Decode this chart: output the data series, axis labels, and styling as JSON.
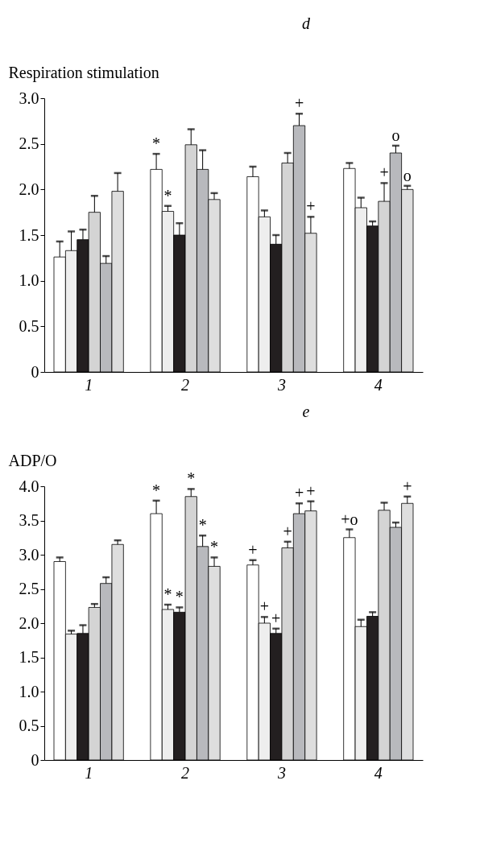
{
  "chart_data": [
    {
      "type": "bar",
      "title": "d",
      "ylabel": "Respiration stimulation",
      "categories": [
        "1",
        "2",
        "3",
        "4"
      ],
      "ylim": [
        0,
        3.0
      ],
      "yticks": [
        0,
        0.5,
        {
          "value": 1,
          "label": "1.0"
        },
        1.5,
        {
          "value": 2,
          "label": "2.0"
        },
        2.5,
        {
          "value": 3,
          "label": "3.0"
        }
      ],
      "grid": false,
      "legend": false,
      "series": [
        {
          "color": "#ffffff",
          "values": [
            1.26,
            2.22,
            2.14,
            2.23
          ],
          "errors": [
            [
              1.26,
              1.43
            ],
            [
              2.22,
              2.39
            ],
            [
              2.14,
              2.25
            ],
            [
              2.23,
              2.29
            ]
          ],
          "value_labels": [
            null,
            "*",
            null,
            null
          ]
        },
        {
          "color": "#eeeeee",
          "values": [
            1.33,
            1.76,
            1.7,
            1.8
          ],
          "errors": [
            [
              1.33,
              1.54
            ],
            [
              1.76,
              1.82
            ],
            [
              1.7,
              1.77
            ],
            [
              1.8,
              1.91
            ]
          ],
          "value_labels": [
            null,
            "*",
            null,
            null
          ]
        },
        {
          "color": "#231f20",
          "values": [
            1.45,
            1.5,
            1.4,
            1.6
          ],
          "errors": [
            [
              1.45,
              1.56
            ],
            [
              1.5,
              1.63
            ],
            [
              1.4,
              1.5
            ],
            [
              1.6,
              1.65
            ]
          ],
          "value_labels": [
            null,
            null,
            null,
            null
          ]
        },
        {
          "color": "#d4d4d4",
          "values": [
            1.75,
            2.49,
            2.29,
            1.87
          ],
          "errors": [
            [
              1.75,
              1.93
            ],
            [
              2.49,
              2.66
            ],
            [
              2.29,
              2.4
            ],
            [
              1.87,
              2.07
            ]
          ],
          "value_labels": [
            null,
            null,
            null,
            "+"
          ]
        },
        {
          "color": "#b8b9bd",
          "values": [
            1.19,
            2.22,
            2.7,
            2.4
          ],
          "errors": [
            [
              1.19,
              1.27
            ],
            [
              2.22,
              2.43
            ],
            [
              2.7,
              2.83
            ],
            [
              2.4,
              2.48
            ]
          ],
          "value_labels": [
            null,
            null,
            "+",
            "o"
          ]
        },
        {
          "color": "#dedede",
          "values": [
            1.98,
            1.89,
            1.52,
            2.0
          ],
          "errors": [
            [
              1.98,
              2.18
            ],
            [
              1.89,
              1.96
            ],
            [
              1.52,
              1.7
            ],
            [
              2.0,
              2.04
            ]
          ],
          "value_labels": [
            null,
            null,
            "+",
            "o"
          ]
        }
      ]
    },
    {
      "type": "bar",
      "title": "e",
      "ylabel": "ADP/O",
      "categories": [
        "1",
        "2",
        "3",
        "4"
      ],
      "ylim": [
        0,
        4.0
      ],
      "yticks": [
        0,
        0.5,
        {
          "value": 1,
          "label": "1.0"
        },
        1.5,
        {
          "value": 2,
          "label": "2.0"
        },
        2.5,
        {
          "value": 3,
          "label": "3.0"
        },
        3.5,
        {
          "value": 4,
          "label": "4.0"
        }
      ],
      "grid": false,
      "legend": false,
      "series": [
        {
          "color": "#ffffff",
          "values": [
            2.9,
            3.6,
            2.85,
            3.25
          ],
          "errors": [
            [
              2.9,
              2.96
            ],
            [
              3.6,
              3.79
            ],
            [
              2.85,
              2.92
            ],
            [
              3.25,
              3.37
            ]
          ],
          "value_labels": [
            null,
            "*",
            "+",
            "+o"
          ]
        },
        {
          "color": "#eeeeee",
          "values": [
            1.84,
            2.2,
            2.0,
            1.95
          ],
          "errors": [
            [
              1.84,
              1.89
            ],
            [
              2.2,
              2.27
            ],
            [
              2.0,
              2.09
            ],
            [
              1.95,
              2.05
            ]
          ],
          "value_labels": [
            null,
            "*",
            "+",
            null
          ]
        },
        {
          "color": "#231f20",
          "values": [
            1.85,
            2.16,
            1.85,
            2.1
          ],
          "errors": [
            [
              1.85,
              1.97
            ],
            [
              2.16,
              2.23
            ],
            [
              1.85,
              1.92
            ],
            [
              2.1,
              2.16
            ]
          ],
          "value_labels": [
            null,
            "*",
            "+",
            null
          ]
        },
        {
          "color": "#d4d4d4",
          "values": [
            2.23,
            3.85,
            3.1,
            3.65
          ],
          "errors": [
            [
              2.23,
              2.28
            ],
            [
              3.85,
              3.96
            ],
            [
              3.1,
              3.19
            ],
            [
              3.65,
              3.76
            ]
          ],
          "value_labels": [
            null,
            "*",
            "+",
            null
          ]
        },
        {
          "color": "#b8b9bd",
          "values": [
            2.58,
            3.12,
            3.6,
            3.4
          ],
          "errors": [
            [
              2.58,
              2.67
            ],
            [
              3.12,
              3.28
            ],
            [
              3.6,
              3.75
            ],
            [
              3.4,
              3.47
            ]
          ],
          "value_labels": [
            null,
            "*",
            "+",
            null
          ]
        },
        {
          "color": "#dedede",
          "values": [
            3.15,
            2.83,
            3.64,
            3.75
          ],
          "errors": [
            [
              3.15,
              3.21
            ],
            [
              2.83,
              2.96
            ],
            [
              3.64,
              3.78
            ],
            [
              3.75,
              3.85
            ]
          ],
          "value_labels": [
            null,
            "*",
            "+",
            "+"
          ]
        }
      ]
    }
  ]
}
